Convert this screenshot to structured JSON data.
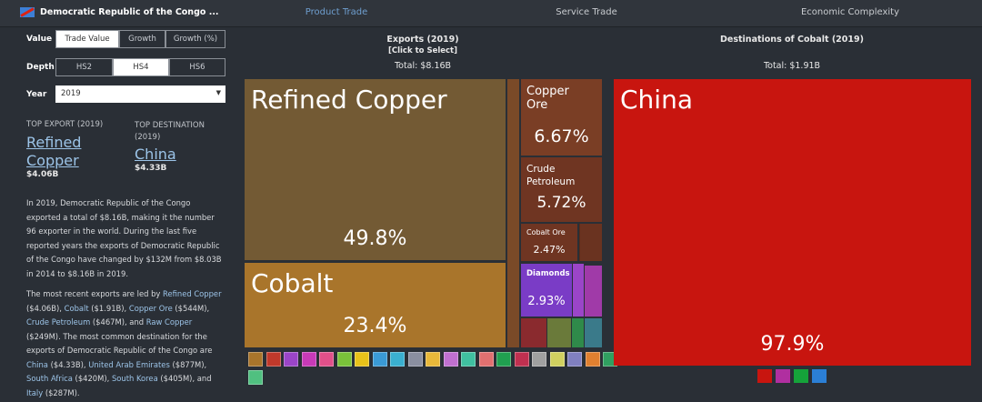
{
  "header": {
    "country": "Democratic Republic of the Congo ...",
    "tabs": [
      "Product Trade",
      "Service Trade",
      "Economic Complexity"
    ]
  },
  "controls": {
    "value": {
      "label": "Value",
      "options": [
        "Trade Value",
        "Growth",
        "Growth (%)"
      ]
    },
    "depth": {
      "label": "Depth",
      "options": [
        "HS2",
        "HS4",
        "HS6"
      ]
    },
    "year": {
      "label": "Year",
      "selected": "2019"
    }
  },
  "summary": {
    "top_export": {
      "label": "TOP EXPORT (2019)",
      "name": "Refined Copper",
      "value": "$4.06B"
    },
    "top_destination": {
      "label": "TOP DESTINATION (2019)",
      "name": "China",
      "value": "$4.33B"
    }
  },
  "paragraph1": "In 2019, Democratic Republic of the Congo exported a total of $8.16B, making it the number 96 exporter in the world. During the last five reported years the exports of Democratic Republic of the Congo have changed by $132M from $8.03B in 2014 to $8.16B in 2019.",
  "paragraph2": [
    {
      "text": "The most recent exports are led by ",
      "link": false
    },
    {
      "text": "Refined Copper",
      "link": true
    },
    {
      "text": " ($4.06B), ",
      "link": false
    },
    {
      "text": "Cobalt",
      "link": true
    },
    {
      "text": " ($1.91B), ",
      "link": false
    },
    {
      "text": "Copper Ore",
      "link": true
    },
    {
      "text": " ($544M), ",
      "link": false
    },
    {
      "text": "Crude Petroleum",
      "link": true
    },
    {
      "text": " ($467M), and ",
      "link": false
    },
    {
      "text": "Raw Copper",
      "link": true
    },
    {
      "text": " ($249M). The most common destination for the exports of Democratic Republic of the Congo are ",
      "link": false
    },
    {
      "text": "China",
      "link": true
    },
    {
      "text": " ($4.33B), ",
      "link": false
    },
    {
      "text": "United Arab Emirates",
      "link": true
    },
    {
      "text": " ($877M), ",
      "link": false
    },
    {
      "text": "South Africa",
      "link": true
    },
    {
      "text": " ($420M), ",
      "link": false
    },
    {
      "text": "South Korea",
      "link": true
    },
    {
      "text": " ($405M), and ",
      "link": false
    },
    {
      "text": "Italy",
      "link": true
    },
    {
      "text": " ($287M).",
      "link": false
    }
  ],
  "exports": {
    "title": "Exports (2019)",
    "subtitle": "[Click to Select]",
    "total": "Total: $8.16B",
    "tiles": [
      {
        "name": "Refined Copper",
        "share": "49.8%"
      },
      {
        "name": "Cobalt",
        "share": "23.4%"
      },
      {
        "name": "Copper Ore",
        "share": "6.67%"
      },
      {
        "name": "Crude Petroleum",
        "share": "5.72%"
      },
      {
        "name": "Cobalt Ore",
        "share": "2.47%"
      },
      {
        "name": "Diamonds",
        "share": "2.93%"
      }
    ]
  },
  "destinations": {
    "title": "Destinations of Cobalt (2019)",
    "total": "Total: $1.91B",
    "tiles": [
      {
        "name": "China",
        "share": "97.9%"
      }
    ]
  }
}
